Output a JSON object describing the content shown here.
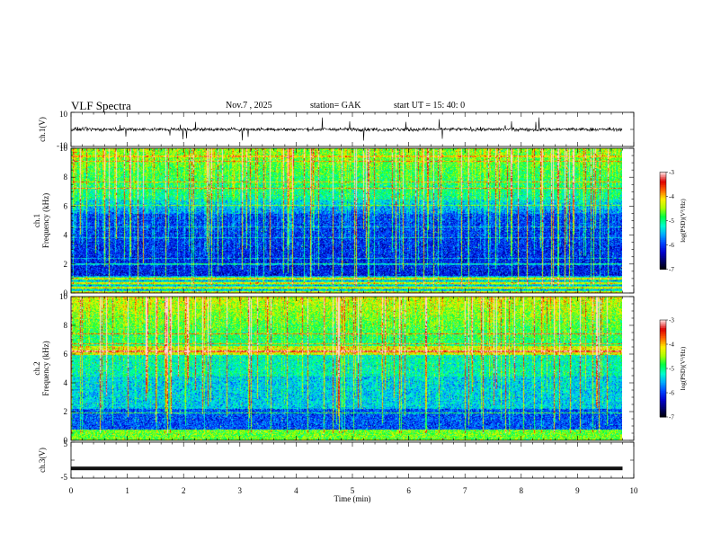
{
  "header": {
    "title": "VLF  Spectra",
    "date": "Nov.7  , 2025",
    "station": "station= GAK",
    "start_ut": "start  UT  =    15: 40: 0"
  },
  "colors": {
    "colormap": [
      "#000000",
      "#000066",
      "#0000cc",
      "#0044ff",
      "#00aaff",
      "#00ffcc",
      "#00ff44",
      "#aaff00",
      "#ffee00",
      "#ff6600",
      "#dd0000",
      "#ffd6d6"
    ]
  },
  "chart_data": [
    {
      "type": "line",
      "name": "ch1-waveform",
      "ylabel": "ch.1(V)",
      "ylim": [
        -10,
        10
      ],
      "yticks": [
        "10",
        "-10"
      ],
      "x_range_min": [
        0,
        9.8
      ],
      "baseline_v": 0,
      "noise_amplitude_v": 1.5
    },
    {
      "type": "heatmap",
      "name": "ch1-spectrogram",
      "ylabel_channel": "ch.1",
      "ylabel": "Frequency  (kHz)",
      "ylim": [
        0,
        10
      ],
      "yticks": [
        "0",
        "2",
        "4",
        "6",
        "8",
        "10"
      ],
      "x_range_min": [
        0,
        9.8
      ],
      "colorbar": {
        "label": "log(PSD)(V²/Hz)",
        "range": [
          -7,
          -3
        ],
        "ticks": [
          "-3",
          "-4",
          "-5",
          "-6",
          "-7"
        ]
      }
    },
    {
      "type": "heatmap",
      "name": "ch2-spectrogram",
      "ylabel_channel": "ch.2",
      "ylabel": "Frequency  (kHz)",
      "ylim": [
        0,
        10
      ],
      "yticks": [
        "0",
        "2",
        "4",
        "6",
        "8",
        "10"
      ],
      "x_range_min": [
        0,
        9.8
      ],
      "colorbar": {
        "label": "log(PSD)(V²/Hz)",
        "range": [
          -7,
          -3
        ],
        "ticks": [
          "-3",
          "-4",
          "-5",
          "-6",
          "-7"
        ]
      }
    },
    {
      "type": "line",
      "name": "ch3-waveform",
      "ylabel": "ch.3(V)",
      "ylim": [
        -5,
        5
      ],
      "yticks": [
        "5",
        "-5"
      ],
      "x_range_min": [
        0,
        9.8
      ],
      "baseline_v": -2.3
    }
  ],
  "xaxis": {
    "label": "Time  (min)",
    "range": [
      0,
      10
    ],
    "ticks": [
      "0",
      "1",
      "2",
      "3",
      "4",
      "5",
      "6",
      "7",
      "8",
      "9",
      "10"
    ]
  }
}
